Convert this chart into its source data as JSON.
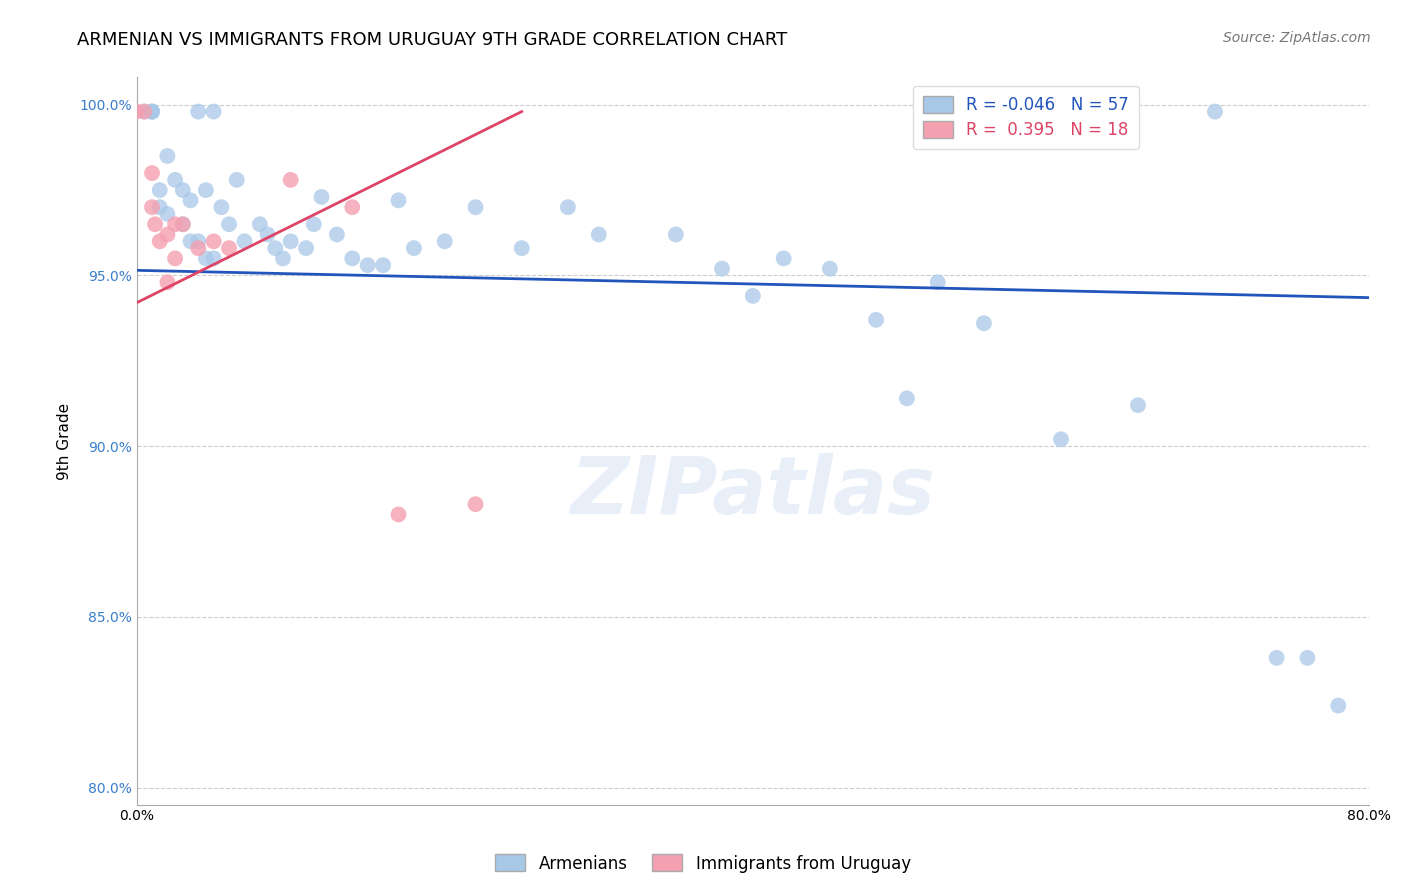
{
  "title": "ARMENIAN VS IMMIGRANTS FROM URUGUAY 9TH GRADE CORRELATION CHART",
  "source": "Source: ZipAtlas.com",
  "ylabel": "9th Grade",
  "xlabel": "",
  "xlim": [
    0.0,
    0.8
  ],
  "ylim": [
    0.795,
    1.008
  ],
  "yticks": [
    1.0,
    0.95,
    0.9,
    0.85,
    0.8
  ],
  "ytick_labels": [
    "100.0%",
    "95.0%",
    "90.0%",
    "85.0%",
    "80.0%"
  ],
  "xticks": [
    0.0,
    0.1,
    0.2,
    0.3,
    0.4,
    0.5,
    0.6,
    0.7,
    0.8
  ],
  "xtick_labels": [
    "0.0%",
    "",
    "",
    "",
    "",
    "",
    "",
    "",
    "80.0%"
  ],
  "blue_R": -0.046,
  "blue_N": 57,
  "pink_R": 0.395,
  "pink_N": 18,
  "blue_color": "#a8c8e8",
  "pink_color": "#f4a0b0",
  "blue_line_color": "#2255bb",
  "pink_line_color": "#dd4466",
  "blue_scatter_x": [
    0.005,
    0.01,
    0.01,
    0.01,
    0.015,
    0.015,
    0.02,
    0.02,
    0.025,
    0.03,
    0.03,
    0.035,
    0.035,
    0.04,
    0.04,
    0.045,
    0.045,
    0.05,
    0.05,
    0.055,
    0.06,
    0.065,
    0.07,
    0.08,
    0.085,
    0.09,
    0.095,
    0.1,
    0.11,
    0.115,
    0.12,
    0.13,
    0.14,
    0.15,
    0.16,
    0.17,
    0.18,
    0.2,
    0.22,
    0.25,
    0.28,
    0.3,
    0.35,
    0.38,
    0.4,
    0.42,
    0.45,
    0.48,
    0.5,
    0.52,
    0.55,
    0.6,
    0.65,
    0.7,
    0.74,
    0.76,
    0.78
  ],
  "blue_scatter_y": [
    0.998,
    0.998,
    0.998,
    0.998,
    0.975,
    0.97,
    0.985,
    0.968,
    0.978,
    0.975,
    0.965,
    0.972,
    0.96,
    0.998,
    0.96,
    0.975,
    0.955,
    0.998,
    0.955,
    0.97,
    0.965,
    0.978,
    0.96,
    0.965,
    0.962,
    0.958,
    0.955,
    0.96,
    0.958,
    0.965,
    0.973,
    0.962,
    0.955,
    0.953,
    0.953,
    0.972,
    0.958,
    0.96,
    0.97,
    0.958,
    0.97,
    0.962,
    0.962,
    0.952,
    0.944,
    0.955,
    0.952,
    0.937,
    0.914,
    0.948,
    0.936,
    0.902,
    0.912,
    0.998,
    0.838,
    0.838,
    0.824
  ],
  "pink_scatter_x": [
    0.0,
    0.005,
    0.01,
    0.01,
    0.012,
    0.015,
    0.02,
    0.02,
    0.025,
    0.025,
    0.03,
    0.04,
    0.05,
    0.06,
    0.1,
    0.14,
    0.17,
    0.22
  ],
  "pink_scatter_y": [
    0.998,
    0.998,
    0.98,
    0.97,
    0.965,
    0.96,
    0.962,
    0.948,
    0.965,
    0.955,
    0.965,
    0.958,
    0.96,
    0.958,
    0.978,
    0.97,
    0.88,
    0.883
  ],
  "blue_line_x0": 0.0,
  "blue_line_x1": 0.8,
  "blue_line_y0": 0.9515,
  "blue_line_y1": 0.9435,
  "pink_line_x0": 0.0,
  "pink_line_x1": 0.25,
  "pink_line_y0": 0.942,
  "pink_line_y1": 0.998,
  "watermark": "ZIPatlas",
  "title_fontsize": 13,
  "axis_fontsize": 11,
  "tick_fontsize": 10,
  "legend_fontsize": 12,
  "source_fontsize": 10
}
